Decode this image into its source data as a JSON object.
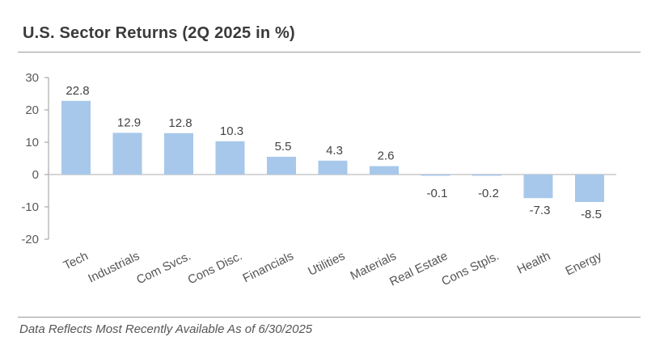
{
  "chart_data": {
    "type": "bar",
    "title": "U.S. Sector Returns (2Q 2025 in %)",
    "categories": [
      "Tech",
      "Industrials",
      "Com Svcs.",
      "Cons Disc.",
      "Financials",
      "Utilities",
      "Materials",
      "Real Estate",
      "Cons Stpls.",
      "Health",
      "Energy"
    ],
    "values": [
      22.8,
      12.9,
      12.8,
      10.3,
      5.5,
      4.3,
      2.6,
      -0.1,
      -0.2,
      -7.3,
      -8.5
    ],
    "value_labels": [
      "22.8",
      "12.9",
      "12.8",
      "10.3",
      "5.5",
      "4.3",
      "2.6",
      "-0.1",
      "-0.2",
      "-7.3",
      "-8.5"
    ],
    "ylim": [
      -20,
      30
    ],
    "yticks": [
      30,
      20,
      10,
      0,
      -10,
      -20
    ],
    "ytick_labels": [
      "30",
      "20",
      "10",
      "0",
      "-10",
      "-20"
    ],
    "bar_color": "#a7c8ea",
    "grid": false,
    "legend": "none"
  },
  "footnote": "Data Reflects Most Recently Available As of 6/30/2025"
}
